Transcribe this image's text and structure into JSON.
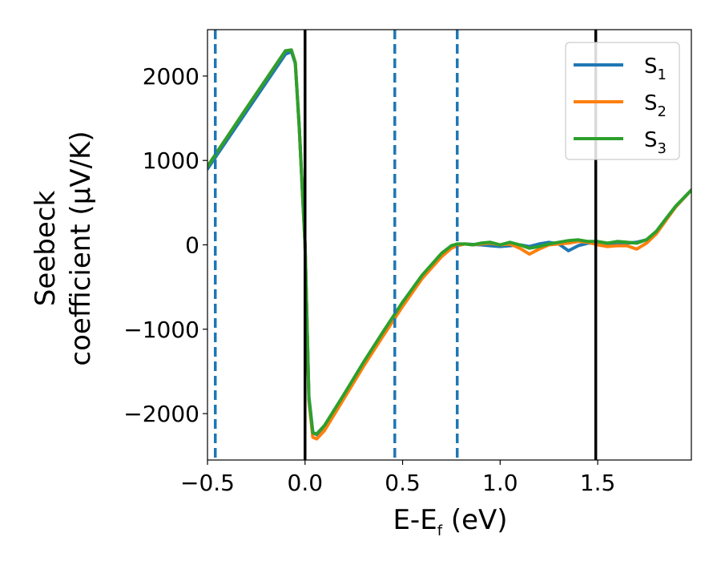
{
  "chart_data": {
    "type": "line",
    "xlabel": "E-E",
    "xlabel_sub": "f",
    "xlabel_unit": " (eV)",
    "ylabel_line1": "Seebeck",
    "ylabel_line2": "coefficient  (μV/K)",
    "xlim": [
      -0.5,
      1.98
    ],
    "ylim": [
      -2550,
      2550
    ],
    "xticks": [
      -0.5,
      0.0,
      0.5,
      1.0,
      1.5
    ],
    "xtick_labels": [
      "−0.5",
      "0.0",
      "0.5",
      "1.0",
      "1.5"
    ],
    "yticks": [
      2000,
      1000,
      0,
      -1000,
      -2000
    ],
    "ytick_labels": [
      "2000",
      "1000",
      "0",
      "−1000",
      "−2000"
    ],
    "grid": false,
    "legend_position": "top-right",
    "vlines_solid": [
      0.0,
      1.49
    ],
    "vlines_dashed": [
      -0.46,
      0.46,
      0.78
    ],
    "series": [
      {
        "name": "S",
        "name_sub": "1",
        "color": "#1f77b4",
        "x": [
          -0.5,
          -0.3,
          -0.1,
          -0.07,
          -0.05,
          -0.03,
          0.0,
          0.02,
          0.04,
          0.06,
          0.1,
          0.2,
          0.3,
          0.4,
          0.5,
          0.6,
          0.7,
          0.75,
          0.78,
          0.82,
          0.86,
          0.9,
          0.95,
          1.0,
          1.05,
          1.1,
          1.15,
          1.2,
          1.25,
          1.3,
          1.35,
          1.4,
          1.45,
          1.5,
          1.55,
          1.6,
          1.65,
          1.7,
          1.75,
          1.8,
          1.85,
          1.9,
          1.98
        ],
        "y": [
          900,
          1580,
          2260,
          2290,
          2150,
          1400,
          0,
          -1800,
          -2220,
          -2250,
          -2150,
          -1780,
          -1400,
          -1050,
          -700,
          -380,
          -120,
          -20,
          0,
          10,
          5,
          0,
          -10,
          -20,
          -10,
          0,
          -20,
          10,
          30,
          10,
          -70,
          -10,
          20,
          20,
          10,
          0,
          20,
          30,
          60,
          150,
          300,
          450,
          650
        ]
      },
      {
        "name": "S",
        "name_sub": "2",
        "color": "#ff7f0e",
        "x": [
          -0.5,
          -0.3,
          -0.1,
          -0.07,
          -0.05,
          -0.03,
          0.0,
          0.02,
          0.04,
          0.06,
          0.1,
          0.2,
          0.3,
          0.4,
          0.5,
          0.6,
          0.7,
          0.75,
          0.78,
          0.82,
          0.86,
          0.9,
          0.95,
          1.0,
          1.05,
          1.1,
          1.15,
          1.2,
          1.25,
          1.3,
          1.35,
          1.4,
          1.45,
          1.5,
          1.55,
          1.6,
          1.65,
          1.7,
          1.75,
          1.8,
          1.85,
          1.9,
          1.98
        ],
        "y": [
          930,
          1620,
          2300,
          2310,
          2160,
          1400,
          0,
          -1850,
          -2280,
          -2300,
          -2200,
          -1820,
          -1440,
          -1080,
          -730,
          -400,
          -140,
          -40,
          -10,
          10,
          0,
          10,
          20,
          0,
          10,
          -40,
          -110,
          -50,
          0,
          10,
          20,
          40,
          30,
          0,
          -20,
          -10,
          -10,
          -50,
          20,
          130,
          290,
          450,
          650
        ]
      },
      {
        "name": "S",
        "name_sub": "3",
        "color": "#2ca02c",
        "x": [
          -0.5,
          -0.3,
          -0.1,
          -0.07,
          -0.05,
          -0.03,
          0.0,
          0.02,
          0.04,
          0.06,
          0.1,
          0.2,
          0.3,
          0.4,
          0.5,
          0.6,
          0.7,
          0.75,
          0.78,
          0.82,
          0.86,
          0.9,
          0.95,
          1.0,
          1.05,
          1.1,
          1.15,
          1.2,
          1.25,
          1.3,
          1.35,
          1.4,
          1.45,
          1.5,
          1.55,
          1.6,
          1.65,
          1.7,
          1.75,
          1.8,
          1.85,
          1.9,
          1.98
        ],
        "y": [
          930,
          1620,
          2300,
          2310,
          2160,
          1400,
          0,
          -1820,
          -2230,
          -2240,
          -2140,
          -1770,
          -1390,
          -1030,
          -680,
          -360,
          -100,
          -10,
          10,
          10,
          0,
          20,
          30,
          0,
          30,
          0,
          -40,
          -20,
          10,
          30,
          50,
          60,
          40,
          40,
          20,
          40,
          30,
          20,
          60,
          160,
          310,
          460,
          650
        ]
      }
    ]
  }
}
